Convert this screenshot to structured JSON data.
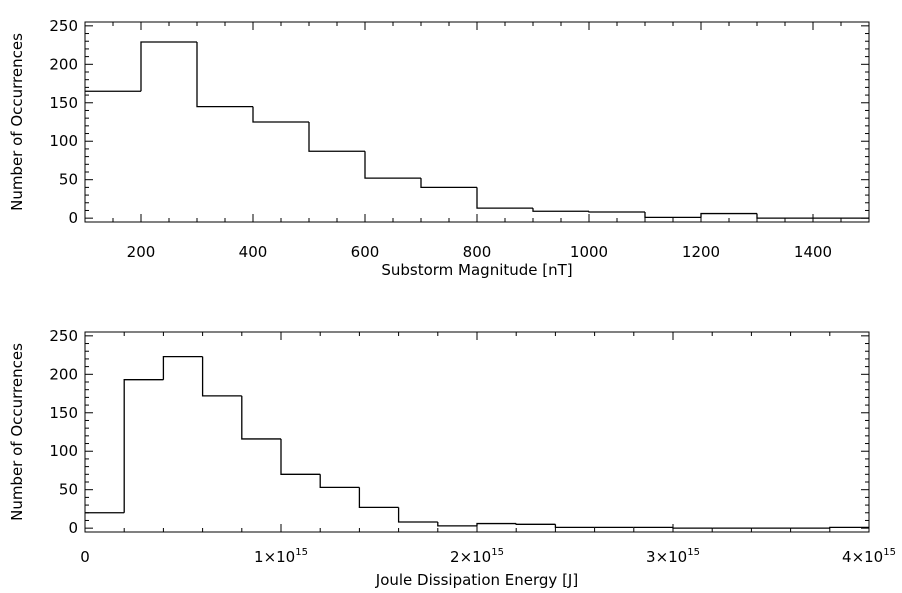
{
  "chart_data": [
    {
      "type": "histogram",
      "xlabel": "Substorm Magnitude [nT]",
      "ylabel": "Number of Occurrences",
      "xlim": [
        100,
        1500
      ],
      "ylim": [
        -5,
        255
      ],
      "bin_edges": [
        100,
        200,
        300,
        400,
        500,
        600,
        700,
        800,
        900,
        1000,
        1100,
        1200,
        1300,
        1400,
        1500
      ],
      "counts": [
        165,
        229,
        145,
        125,
        87,
        52,
        40,
        13,
        9,
        8,
        1,
        6,
        0,
        0
      ],
      "xticks": [
        200,
        400,
        600,
        800,
        1000,
        1200,
        1400
      ],
      "xtick_labels": [
        "200",
        "400",
        "600",
        "800",
        "1000",
        "1200",
        "1400"
      ],
      "yticks": [
        0,
        50,
        100,
        150,
        200,
        250
      ],
      "ytick_labels": [
        "0",
        "50",
        "100",
        "150",
        "200",
        "250"
      ]
    },
    {
      "type": "histogram",
      "xlabel": "Joule Dissipation Energy [J]",
      "ylabel": "Number of Occurrences",
      "xlim": [
        0,
        4000000000000000.0
      ],
      "ylim": [
        -5,
        255
      ],
      "bin_edges": [
        0,
        200000000000000.0,
        400000000000000.0,
        600000000000000.0,
        800000000000000.0,
        1000000000000000.0,
        1200000000000000.0,
        1400000000000000.0,
        1600000000000000.0,
        1800000000000000.0,
        2000000000000000.0,
        2200000000000000.0,
        2400000000000000.0,
        2600000000000000.0,
        2800000000000000.0,
        3000000000000000.0,
        3200000000000000.0,
        3400000000000000.0,
        3600000000000000.0,
        3800000000000000.0,
        4000000000000000.0
      ],
      "counts": [
        20,
        193,
        223,
        172,
        116,
        70,
        53,
        27,
        8,
        3,
        6,
        5,
        1,
        1,
        1,
        0,
        0,
        0,
        0,
        1
      ],
      "xticks": [
        0,
        1000000000000000.0,
        2000000000000000.0,
        3000000000000000.0,
        4000000000000000.0
      ],
      "xtick_labels": [
        {
          "base": "0",
          "exp": ""
        },
        {
          "base": "1×10",
          "exp": "15"
        },
        {
          "base": "2×10",
          "exp": "15"
        },
        {
          "base": "3×10",
          "exp": "15"
        },
        {
          "base": "4×10",
          "exp": "15"
        }
      ],
      "yticks": [
        0,
        50,
        100,
        150,
        200,
        250
      ],
      "ytick_labels": [
        "0",
        "50",
        "100",
        "150",
        "200",
        "250"
      ]
    }
  ]
}
